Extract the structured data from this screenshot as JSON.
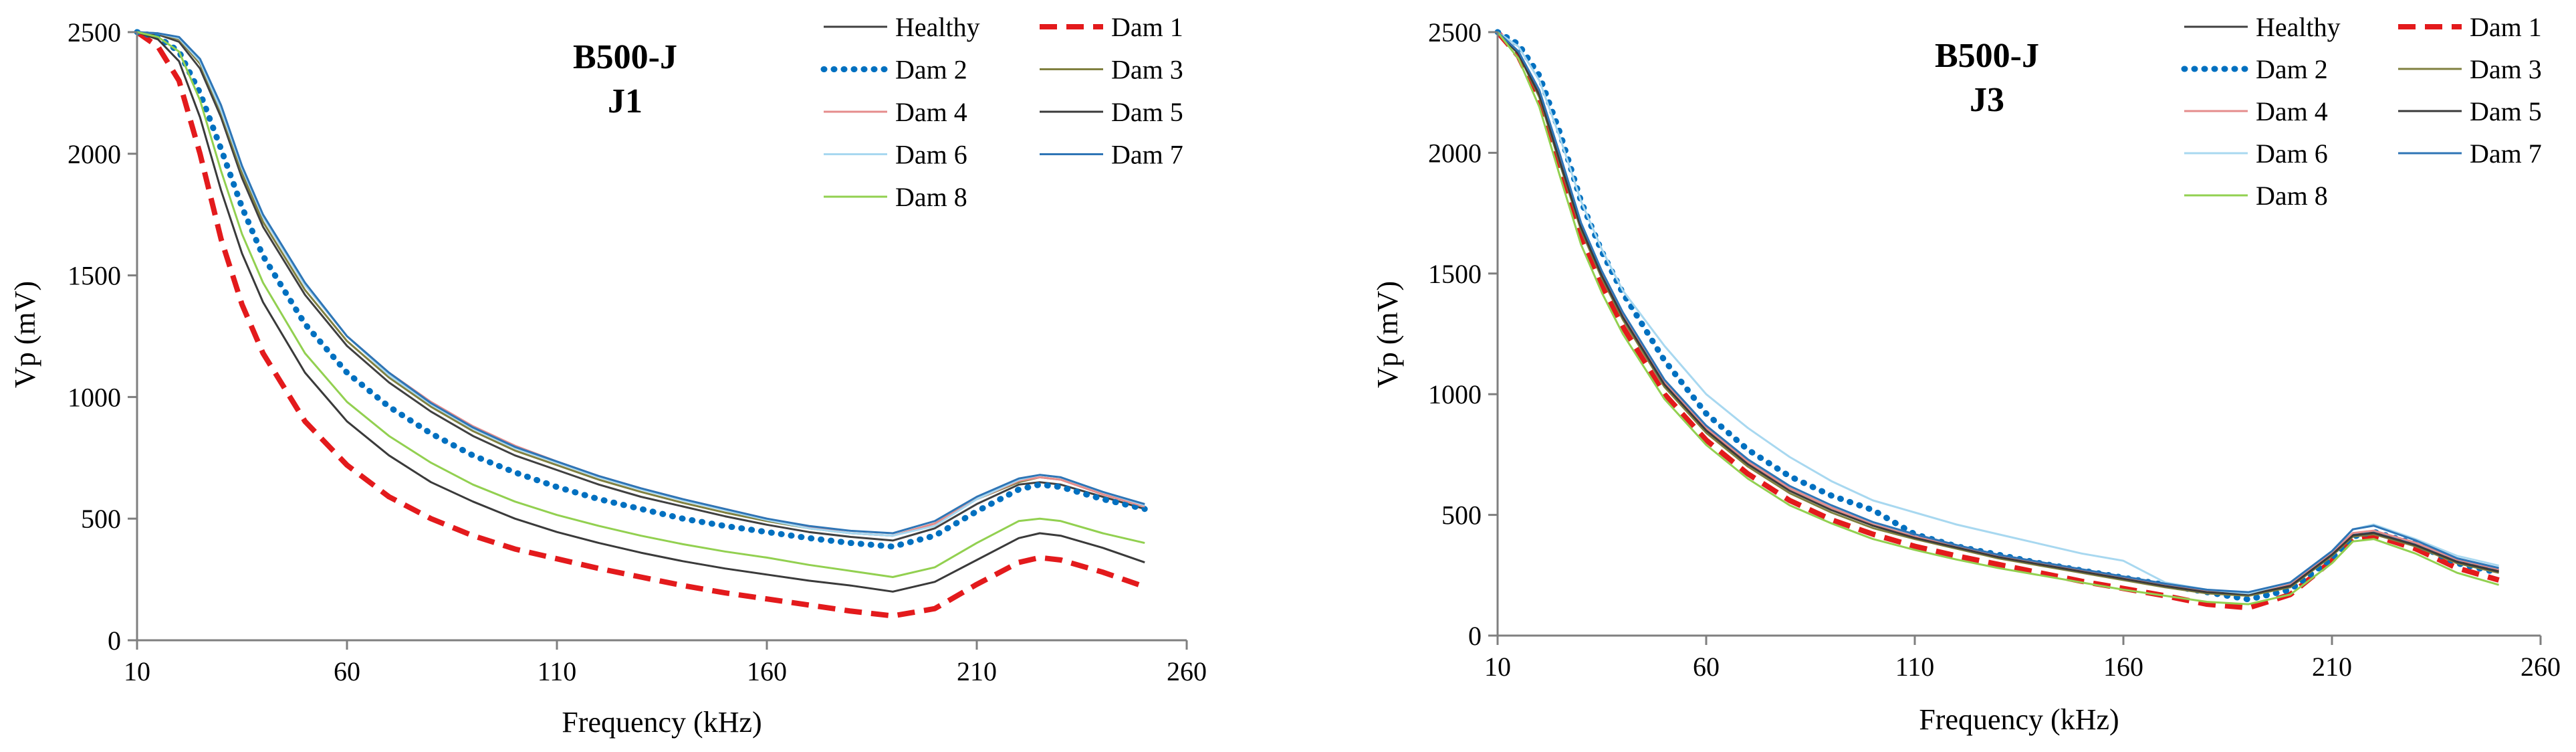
{
  "chart_data": [
    {
      "type": "line",
      "title": "B500-J",
      "subtitle": "J1",
      "xlabel": "Frequency  (kHz)",
      "ylabel": "Vp (mV)",
      "xlim": [
        10,
        260
      ],
      "ylim": [
        0,
        2500
      ],
      "xticks": [
        "10",
        "60",
        "110",
        "160",
        "210",
        "260"
      ],
      "yticks": [
        "0",
        "500",
        "1000",
        "1500",
        "2000",
        "2500"
      ],
      "grid": false,
      "legend_position": "top-right",
      "x": [
        10,
        15,
        20,
        25,
        30,
        35,
        40,
        50,
        60,
        70,
        80,
        90,
        100,
        110,
        120,
        130,
        140,
        150,
        160,
        170,
        180,
        190,
        200,
        210,
        220,
        225,
        230,
        240,
        250
      ],
      "series": [
        {
          "name": "Healthy",
          "color": "#404040",
          "dash": "solid",
          "width": 3,
          "values": [
            2500,
            2490,
            2460,
            2350,
            2150,
            1900,
            1700,
            1420,
            1210,
            1060,
            940,
            840,
            760,
            700,
            640,
            590,
            550,
            510,
            475,
            445,
            425,
            410,
            460,
            560,
            640,
            650,
            640,
            590,
            540
          ]
        },
        {
          "name": "Dam 1",
          "color": "#e31a1c",
          "dash": "dashed",
          "width": 8,
          "values": [
            2500,
            2440,
            2300,
            2000,
            1650,
            1380,
            1180,
            900,
            720,
            590,
            500,
            430,
            375,
            335,
            295,
            260,
            225,
            195,
            170,
            145,
            120,
            100,
            130,
            230,
            320,
            340,
            330,
            280,
            220
          ]
        },
        {
          "name": "Dam 2",
          "color": "#0070c0",
          "dash": "dotted",
          "width": 9,
          "values": [
            2500,
            2480,
            2420,
            2250,
            2020,
            1780,
            1580,
            1300,
            1100,
            960,
            850,
            760,
            690,
            630,
            580,
            540,
            500,
            470,
            445,
            420,
            400,
            385,
            430,
            530,
            620,
            640,
            630,
            580,
            540
          ]
        },
        {
          "name": "Dam 3",
          "color": "#808040",
          "dash": "solid",
          "width": 3,
          "values": [
            2500,
            2495,
            2470,
            2370,
            2170,
            1920,
            1720,
            1440,
            1230,
            1080,
            960,
            860,
            780,
            720,
            660,
            610,
            565,
            525,
            490,
            460,
            440,
            430,
            480,
            580,
            650,
            670,
            660,
            600,
            550
          ]
        },
        {
          "name": "Dam 4",
          "color": "#e58c8c",
          "dash": "solid",
          "width": 3,
          "values": [
            2500,
            2495,
            2475,
            2380,
            2180,
            1940,
            1740,
            1460,
            1250,
            1100,
            980,
            880,
            800,
            735,
            675,
            625,
            580,
            540,
            500,
            465,
            440,
            430,
            480,
            580,
            655,
            670,
            660,
            600,
            550
          ]
        },
        {
          "name": "Dam 5",
          "color": "#3a3a3a",
          "dash": "solid",
          "width": 3,
          "values": [
            2500,
            2470,
            2380,
            2150,
            1850,
            1590,
            1390,
            1100,
            900,
            760,
            650,
            570,
            500,
            445,
            400,
            360,
            325,
            295,
            270,
            245,
            225,
            200,
            240,
            330,
            420,
            440,
            430,
            380,
            320
          ]
        },
        {
          "name": "Dam 6",
          "color": "#a8d8f0",
          "dash": "solid",
          "width": 3,
          "values": [
            2500,
            2495,
            2475,
            2380,
            2180,
            1940,
            1740,
            1460,
            1250,
            1090,
            970,
            870,
            790,
            730,
            670,
            620,
            575,
            535,
            495,
            460,
            440,
            430,
            470,
            580,
            660,
            680,
            670,
            610,
            555
          ]
        },
        {
          "name": "Dam 7",
          "color": "#2e75b6",
          "dash": "solid",
          "width": 3,
          "values": [
            2500,
            2495,
            2480,
            2390,
            2200,
            1950,
            1750,
            1470,
            1250,
            1100,
            975,
            875,
            795,
            735,
            675,
            625,
            580,
            540,
            500,
            470,
            450,
            440,
            490,
            590,
            665,
            680,
            670,
            610,
            560
          ]
        },
        {
          "name": "Dam 8",
          "color": "#92d050",
          "dash": "solid",
          "width": 3,
          "values": [
            2500,
            2480,
            2420,
            2220,
            1930,
            1670,
            1470,
            1180,
            980,
            840,
            730,
            640,
            570,
            515,
            470,
            430,
            395,
            365,
            340,
            310,
            285,
            260,
            300,
            400,
            490,
            500,
            490,
            440,
            400
          ]
        }
      ]
    },
    {
      "type": "line",
      "title": "B500-J",
      "subtitle": "J3",
      "xlabel": "Frequency  (kHz)",
      "ylabel": "Vp (mV)",
      "xlim": [
        10,
        260
      ],
      "ylim": [
        0,
        2500
      ],
      "xticks": [
        "10",
        "60",
        "110",
        "160",
        "210",
        "260"
      ],
      "yticks": [
        "0",
        "500",
        "1000",
        "1500",
        "2000",
        "2500"
      ],
      "grid": false,
      "legend_position": "top-right",
      "x": [
        10,
        15,
        20,
        25,
        30,
        35,
        40,
        50,
        60,
        70,
        80,
        90,
        100,
        110,
        120,
        130,
        140,
        150,
        160,
        170,
        180,
        190,
        200,
        210,
        215,
        220,
        230,
        240,
        250
      ],
      "series": [
        {
          "name": "Healthy",
          "color": "#404040",
          "dash": "solid",
          "width": 3,
          "values": [
            2500,
            2420,
            2250,
            1980,
            1700,
            1500,
            1330,
            1050,
            860,
            720,
            610,
            530,
            460,
            410,
            370,
            330,
            300,
            270,
            240,
            210,
            185,
            170,
            210,
            340,
            420,
            430,
            380,
            310,
            270
          ]
        },
        {
          "name": "Dam 1",
          "color": "#e31a1c",
          "dash": "dashed",
          "width": 8,
          "values": [
            2500,
            2400,
            2220,
            1940,
            1660,
            1450,
            1280,
            1000,
            810,
            670,
            560,
            480,
            420,
            370,
            330,
            295,
            260,
            225,
            195,
            165,
            130,
            115,
            170,
            310,
            400,
            415,
            360,
            280,
            230
          ]
        },
        {
          "name": "Dam 2",
          "color": "#0070c0",
          "dash": "dotted",
          "width": 9,
          "values": [
            2500,
            2450,
            2320,
            2080,
            1800,
            1590,
            1420,
            1140,
            920,
            770,
            660,
            580,
            520,
            420,
            370,
            335,
            300,
            270,
            240,
            210,
            180,
            150,
            190,
            320,
            410,
            430,
            380,
            300,
            260
          ]
        },
        {
          "name": "Dam 3",
          "color": "#808040",
          "dash": "solid",
          "width": 3,
          "values": [
            2500,
            2410,
            2230,
            1950,
            1680,
            1480,
            1310,
            1030,
            840,
            700,
            590,
            510,
            445,
            400,
            360,
            320,
            290,
            260,
            230,
            200,
            175,
            165,
            200,
            330,
            410,
            420,
            370,
            300,
            260
          ]
        },
        {
          "name": "Dam 4",
          "color": "#e58c8c",
          "dash": "solid",
          "width": 3,
          "values": [
            2500,
            2420,
            2250,
            1980,
            1700,
            1500,
            1330,
            1050,
            860,
            720,
            610,
            530,
            460,
            410,
            370,
            330,
            300,
            270,
            240,
            210,
            185,
            175,
            215,
            345,
            425,
            435,
            385,
            315,
            275
          ]
        },
        {
          "name": "Dam 5",
          "color": "#3a3a3a",
          "dash": "solid",
          "width": 3,
          "values": [
            2500,
            2410,
            2240,
            1960,
            1690,
            1490,
            1320,
            1040,
            850,
            710,
            600,
            520,
            455,
            405,
            365,
            325,
            295,
            265,
            235,
            205,
            180,
            170,
            205,
            335,
            415,
            425,
            375,
            305,
            265
          ]
        },
        {
          "name": "Dam 6",
          "color": "#a8d8f0",
          "dash": "solid",
          "width": 3,
          "values": [
            2500,
            2440,
            2300,
            2060,
            1800,
            1600,
            1430,
            1200,
            1000,
            860,
            740,
            640,
            560,
            510,
            460,
            420,
            380,
            340,
            310,
            220,
            190,
            175,
            220,
            350,
            440,
            460,
            400,
            330,
            290
          ]
        },
        {
          "name": "Dam 7",
          "color": "#2e75b6",
          "dash": "solid",
          "width": 3,
          "values": [
            2500,
            2420,
            2260,
            1990,
            1710,
            1510,
            1340,
            1060,
            870,
            730,
            620,
            540,
            470,
            420,
            375,
            335,
            305,
            275,
            245,
            215,
            190,
            180,
            220,
            350,
            440,
            455,
            395,
            320,
            280
          ]
        },
        {
          "name": "Dam 8",
          "color": "#92d050",
          "dash": "solid",
          "width": 3,
          "values": [
            2500,
            2390,
            2190,
            1900,
            1620,
            1420,
            1250,
            980,
            790,
            650,
            540,
            465,
            400,
            355,
            315,
            280,
            250,
            220,
            190,
            165,
            140,
            130,
            170,
            300,
            390,
            400,
            340,
            260,
            210
          ]
        }
      ]
    }
  ]
}
